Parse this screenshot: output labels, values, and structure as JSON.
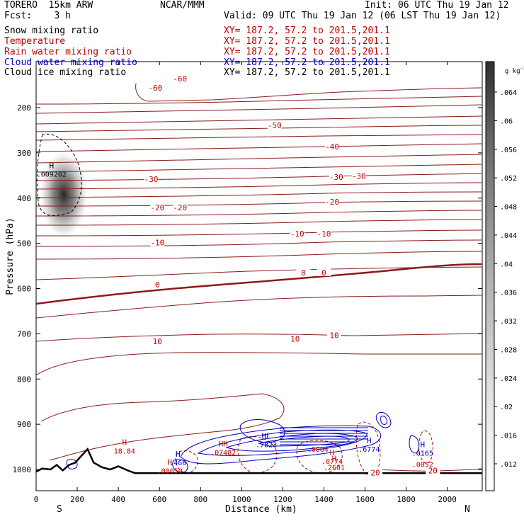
{
  "header": {
    "model": "TORERO  15km ARW",
    "org": "NCAR/MMM",
    "init": "Init: 06 UTC Thu 19 Jan 12",
    "fcst": "Fcst:    3 h",
    "valid": "Valid: 09 UTC Thu 19 Jan 12 (06 LST Thu 19 Jan 12)"
  },
  "legend": [
    {
      "name": "Snow mixing ratio",
      "xy": "XY= 187.2, 57.2 to 201.5,201.1",
      "color": "#000000"
    },
    {
      "name": "Temperature",
      "xy": "XY= 187.2, 57.2 to 201.5,201.1",
      "color": "#c00000"
    },
    {
      "name": "Rain water mixing ratio",
      "xy": "XY= 187.2, 57.2 to 201.5,201.1",
      "color": "#c00000"
    },
    {
      "name": "Cloud water mixing ratio",
      "xy": "XY= 187.2, 57.2 to 201.5,201.1",
      "color": "#0000c0"
    },
    {
      "name": "Cloud ice mixing ratio",
      "xy": "XY= 187.2, 57.2 to 201.5,201.1",
      "color": "#000000"
    }
  ],
  "chart_data": {
    "type": "cross-section",
    "xlabel": "Distance (km)",
    "ylabel": "Pressure (hPa)",
    "xlim": [
      0,
      2170
    ],
    "ylim": [
      1050,
      100
    ],
    "x_ticks": [
      0,
      200,
      400,
      600,
      800,
      1000,
      1200,
      1400,
      1600,
      1800,
      2000
    ],
    "y_ticks": [
      200,
      300,
      400,
      500,
      600,
      700,
      800,
      900,
      1000
    ],
    "left_end_label": "S",
    "right_end_label": "N",
    "colorbar": {
      "unit": "g kg",
      "unit_exp": "-1",
      "ticks": [
        ".012",
        ".016",
        ".02",
        ".024",
        ".028",
        ".032",
        ".036",
        ".04",
        ".044",
        ".048",
        ".052",
        ".056",
        ".06",
        ".064"
      ]
    },
    "temperature_contours_C": [
      -60,
      -50,
      -40,
      -30,
      -20,
      -10,
      0,
      10,
      20
    ],
    "contour_labels": [
      {
        "text": "-60",
        "x": 580,
        "p": 158,
        "color": "#c00000"
      },
      {
        "text": "-60",
        "x": 700,
        "p": 137,
        "color": "#c00000"
      },
      {
        "text": "-50",
        "x": 1160,
        "p": 241,
        "color": "#c00000"
      },
      {
        "text": "-40",
        "x": 1440,
        "p": 288,
        "color": "#c00000"
      },
      {
        "text": "-30",
        "x": 560,
        "p": 360,
        "color": "#c00000"
      },
      {
        "text": "-30",
        "x": 1460,
        "p": 355,
        "color": "#c00000"
      },
      {
        "text": "-30",
        "x": 1570,
        "p": 353,
        "color": "#c00000"
      },
      {
        "text": "-20",
        "x": 590,
        "p": 422,
        "color": "#c00000"
      },
      {
        "text": "-20",
        "x": 700,
        "p": 422,
        "color": "#c00000"
      },
      {
        "text": "-20",
        "x": 1440,
        "p": 410,
        "color": "#c00000"
      },
      {
        "text": "-10",
        "x": 590,
        "p": 500,
        "color": "#c00000"
      },
      {
        "text": "-10",
        "x": 1270,
        "p": 480,
        "color": "#c00000"
      },
      {
        "text": "-10",
        "x": 1400,
        "p": 480,
        "color": "#c00000"
      },
      {
        "text": "0",
        "x": 590,
        "p": 593,
        "color": "#c00000"
      },
      {
        "text": "0",
        "x": 1300,
        "p": 566,
        "color": "#c00000"
      },
      {
        "text": "0",
        "x": 1400,
        "p": 566,
        "color": "#c00000"
      },
      {
        "text": "10",
        "x": 590,
        "p": 718,
        "color": "#c00000"
      },
      {
        "text": "10",
        "x": 1260,
        "p": 713,
        "color": "#c00000"
      },
      {
        "text": "10",
        "x": 1450,
        "p": 705,
        "color": "#c00000"
      },
      {
        "text": "20",
        "x": 1650,
        "p": 1009,
        "color": "#c00000"
      },
      {
        "text": "20",
        "x": 1930,
        "p": 1004,
        "color": "#c00000"
      }
    ],
    "extrema_labels": [
      {
        "mark": "H",
        "value": ".009202",
        "x": 75,
        "p": 340,
        "color": "#000000"
      },
      {
        "mark": "H",
        "value": "18.84",
        "x": 430,
        "p": 952,
        "color": "#c00000"
      },
      {
        "mark": "H",
        "value": ".00050",
        "x": 650,
        "p": 996,
        "color": "#c00000"
      },
      {
        "mark": "H",
        "value": ".466",
        "x": 690,
        "p": 978,
        "color": "#0000c0"
      },
      {
        "mark": "HH",
        "value": ".07482",
        "x": 910,
        "p": 955,
        "color": "#c00000"
      },
      {
        "mark": "HL",
        "value": ".7823",
        "x": 1120,
        "p": 938,
        "color": "#0000c0"
      },
      {
        "mark": "",
        "value": ".0004",
        "x": 1370,
        "p": 948,
        "color": "#c00000"
      },
      {
        "mark": "H",
        "value": ".0774",
        "x": 1440,
        "p": 975,
        "color": "#c00000"
      },
      {
        "mark": "H",
        "value": ".2601",
        "x": 1450,
        "p": 988,
        "color": "#c00000"
      },
      {
        "mark": "H",
        "value": ".6774",
        "x": 1620,
        "p": 948,
        "color": "#0000c0"
      },
      {
        "mark": "H",
        "value": ".0165",
        "x": 1880,
        "p": 957,
        "color": "#0000c0"
      },
      {
        "mark": "",
        "value": ".0052",
        "x": 1880,
        "p": 982,
        "color": "#c00000"
      }
    ],
    "snow_max_location": {
      "x": 130,
      "p": 405,
      "value": 0.064
    },
    "terrain_surface_hPa": {
      "x": [
        0,
        30,
        70,
        100,
        130,
        160,
        190,
        220,
        250,
        280,
        320,
        360,
        400,
        450,
        480,
        600,
        1000,
        1600,
        2000,
        2170
      ],
      "p": [
        1005,
        998,
        1000,
        990,
        1002,
        990,
        985,
        970,
        955,
        985,
        995,
        1000,
        993,
        1003,
        1008,
        1008,
        1008,
        1008,
        1008,
        1008
      ]
    }
  }
}
